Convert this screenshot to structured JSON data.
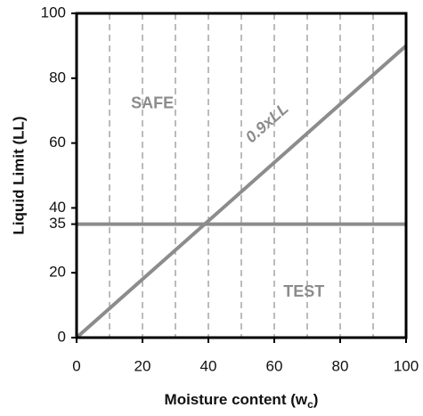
{
  "chart_data": {
    "type": "line",
    "xlabel": [
      "Moisture content (w",
      "c",
      ")"
    ],
    "ylabel": "Liquid Limit (LL)",
    "xlim": [
      0,
      100
    ],
    "ylim": [
      0,
      100
    ],
    "xticks": [
      0,
      20,
      40,
      60,
      80,
      100
    ],
    "yticks": [
      0,
      20,
      35,
      40,
      60,
      80,
      100
    ],
    "xgrid_lines": [
      10,
      20,
      30,
      40,
      50,
      60,
      70,
      80,
      90
    ],
    "series": [
      {
        "name": "0.9xLL",
        "color": "#8c8c8c",
        "x": [
          0,
          100
        ],
        "values": [
          0,
          90
        ]
      },
      {
        "color": "#8c8c8c",
        "x": [
          0,
          100
        ],
        "values": [
          35,
          35
        ]
      }
    ],
    "annotations": [
      "SAFE",
      "TEST"
    ]
  }
}
